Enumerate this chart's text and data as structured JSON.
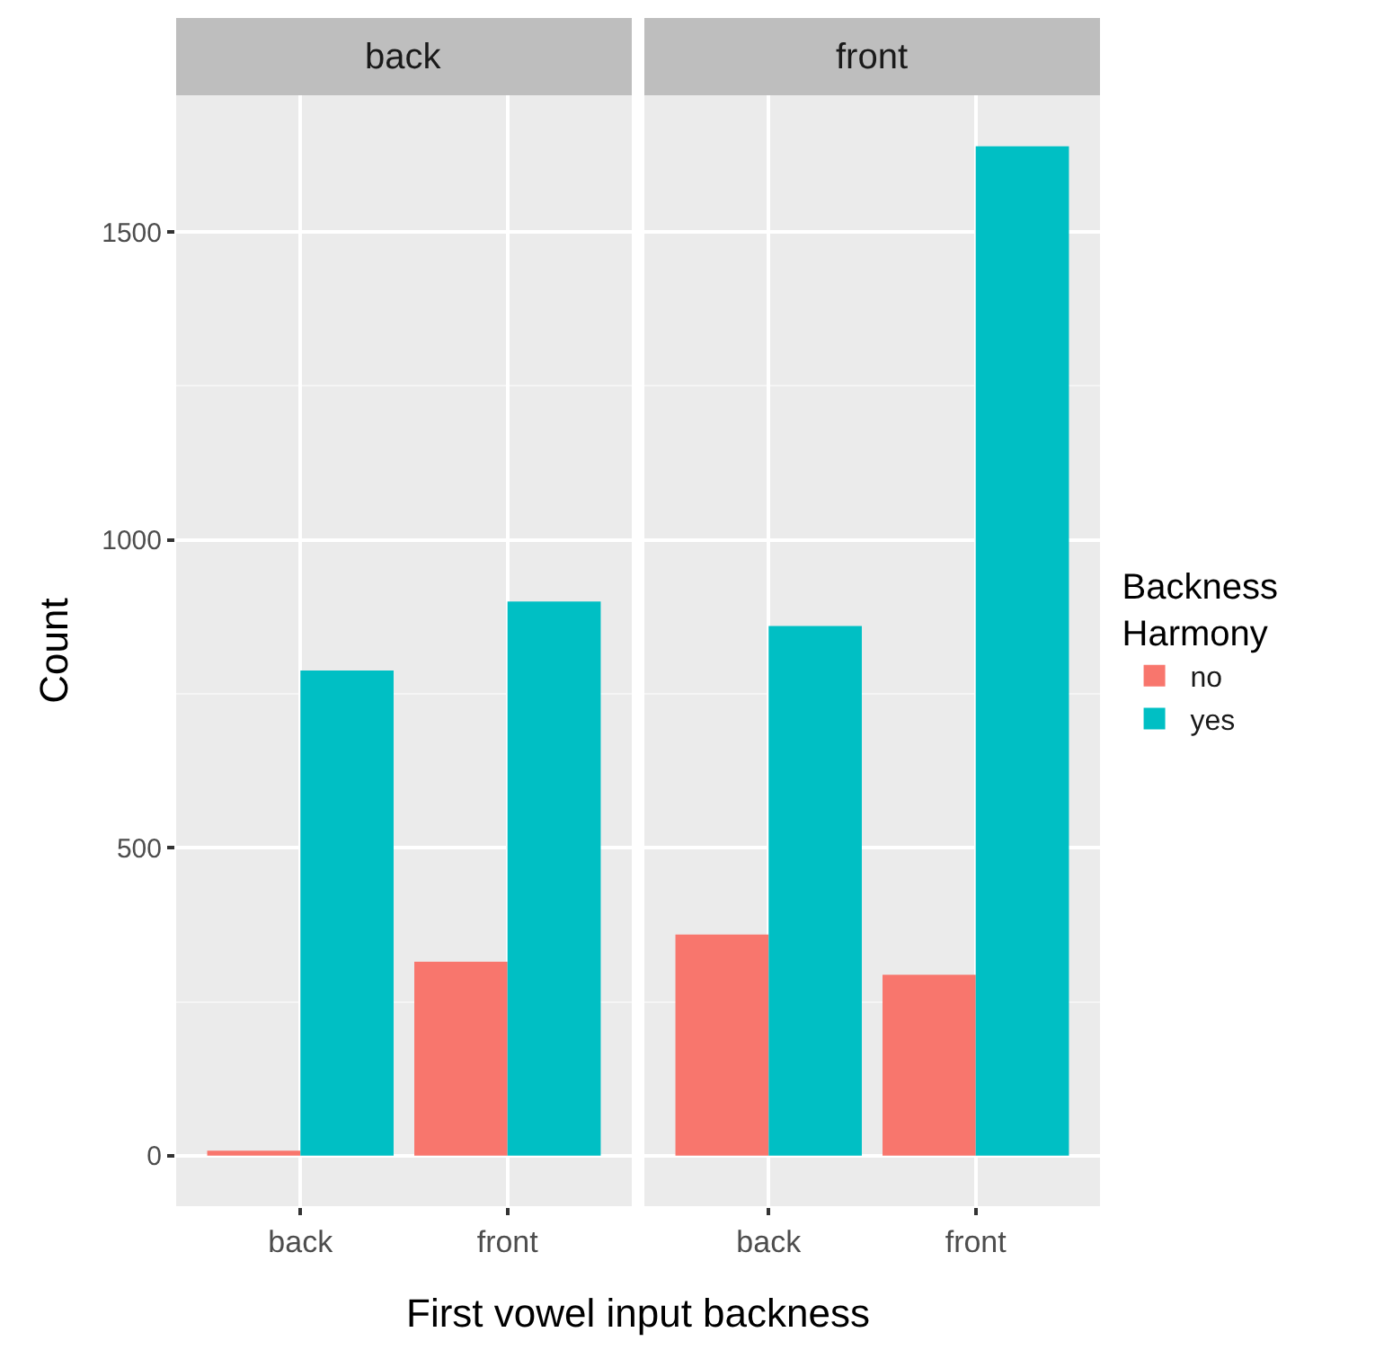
{
  "chart_data": [
    {
      "type": "bar",
      "title": "back",
      "xlabel": "First vowel input backness",
      "ylabel": "Count",
      "categories": [
        "back",
        "front"
      ],
      "series": [
        {
          "name": "no",
          "color": "#f8766d",
          "values": [
            8,
            315
          ]
        },
        {
          "name": "yes",
          "color": "#00bfc4",
          "values": [
            788,
            900
          ]
        }
      ],
      "ylim": [
        -82,
        1722
      ],
      "yticks": [
        0,
        500,
        1000,
        1500
      ],
      "grid": true,
      "legend": "right",
      "legend_title": "Backness Harmony"
    },
    {
      "type": "bar",
      "title": "front",
      "categories": [
        "back",
        "front"
      ],
      "series": [
        {
          "color": "#f8766d",
          "values": [
            359,
            294
          ]
        },
        {
          "color": "#00bfc4",
          "values": [
            860,
            1639
          ]
        }
      ],
      "ylim": [
        -82,
        1722
      ],
      "yticks": [
        0,
        500,
        1000,
        1500
      ],
      "grid": true,
      "tick_labels": "x"
    }
  ]
}
